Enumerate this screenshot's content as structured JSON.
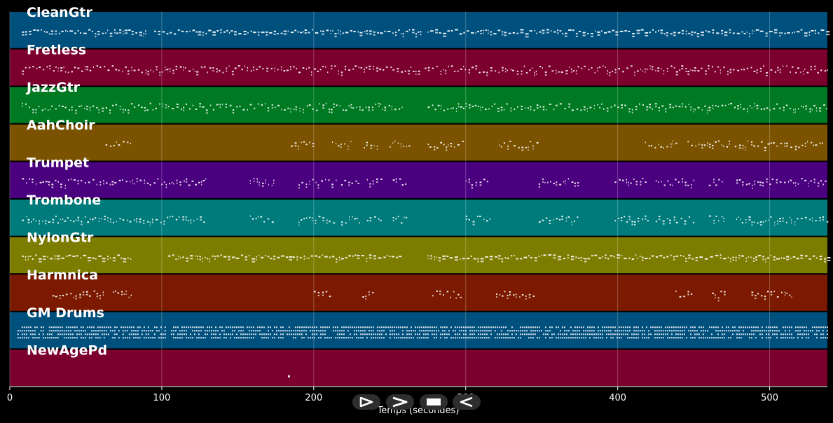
{
  "player": {
    "tracks": [
      {
        "name": "CleanGtr",
        "color": "#00507e",
        "density": "high",
        "segments": [
          [
            8,
            90
          ],
          [
            95,
            270
          ],
          [
            275,
            538
          ]
        ]
      },
      {
        "name": "Fretless",
        "color": "#7c002e",
        "density": "med",
        "segments": [
          [
            8,
            100
          ],
          [
            102,
            270
          ],
          [
            273,
            538
          ]
        ]
      },
      {
        "name": "JazzGtr",
        "color": "#007a22",
        "density": "med",
        "segments": [
          [
            8,
            260
          ],
          [
            275,
            538
          ]
        ]
      },
      {
        "name": "AahChoir",
        "color": "#7a5200",
        "density": "sparse",
        "segments": [
          [
            63,
            80
          ],
          [
            185,
            200
          ],
          [
            212,
            225
          ],
          [
            233,
            243
          ],
          [
            250,
            265
          ],
          [
            275,
            300
          ],
          [
            322,
            347
          ],
          [
            418,
            440
          ],
          [
            446,
            475
          ],
          [
            477,
            490
          ],
          [
            492,
            505
          ],
          [
            507,
            525
          ],
          [
            527,
            535
          ]
        ]
      },
      {
        "name": "Trumpet",
        "color": "#4b0080",
        "density": "med",
        "segments": [
          [
            8,
            130
          ],
          [
            158,
            175
          ],
          [
            190,
            215
          ],
          [
            218,
            230
          ],
          [
            235,
            245
          ],
          [
            252,
            262
          ],
          [
            300,
            316
          ],
          [
            348,
            375
          ],
          [
            398,
            420
          ],
          [
            425,
            450
          ],
          [
            460,
            470
          ],
          [
            478,
            538
          ]
        ]
      },
      {
        "name": "Trombone",
        "color": "#007b7b",
        "density": "med",
        "segments": [
          [
            8,
            130
          ],
          [
            158,
            175
          ],
          [
            190,
            215
          ],
          [
            218,
            230
          ],
          [
            235,
            245
          ],
          [
            252,
            262
          ],
          [
            300,
            316
          ],
          [
            348,
            375
          ],
          [
            398,
            420
          ],
          [
            425,
            450
          ],
          [
            460,
            470
          ],
          [
            478,
            538
          ]
        ]
      },
      {
        "name": "NylonGtr",
        "color": "#7c7c00",
        "density": "high",
        "segments": [
          [
            8,
            80
          ],
          [
            104,
            185
          ],
          [
            186,
            258
          ],
          [
            275,
            538
          ]
        ]
      },
      {
        "name": "Harmnica",
        "color": "#7b1a00",
        "density": "sparse",
        "segments": [
          [
            28,
            62
          ],
          [
            68,
            80
          ],
          [
            200,
            212
          ],
          [
            232,
            240
          ],
          [
            278,
            298
          ],
          [
            320,
            345
          ],
          [
            438,
            450
          ],
          [
            462,
            472
          ],
          [
            488,
            515
          ]
        ]
      },
      {
        "name": "GM Drums",
        "color": "#00507e",
        "density": "drums",
        "segments": [
          [
            5,
            102
          ],
          [
            106,
            538
          ]
        ]
      },
      {
        "name": "NewAgePd",
        "color": "#7c002e",
        "density": "dot",
        "segments": [
          [
            183,
            184
          ]
        ]
      }
    ],
    "xaxis": {
      "label": "Temps (secondes)",
      "min": 0,
      "max": 538,
      "ticks": [
        0,
        100,
        200,
        300,
        400,
        500
      ]
    },
    "controls": [
      {
        "id": "rewind",
        "icon": "rewind-icon"
      },
      {
        "id": "play",
        "icon": "play-icon"
      },
      {
        "id": "stop",
        "icon": "stop-icon"
      },
      {
        "id": "forward",
        "icon": "forward-icon"
      }
    ]
  }
}
